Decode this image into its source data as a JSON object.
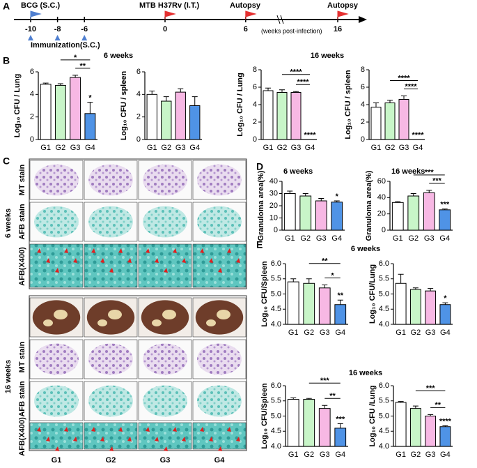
{
  "panel_labels": [
    "A",
    "B",
    "C",
    "D",
    "E"
  ],
  "timeline": {
    "ticks": [
      -10,
      -8,
      -6,
      0,
      6,
      16
    ],
    "bcg": "BCG (S.C.)",
    "immunization": "Immunization(S.C.)",
    "challenge": "MTB H37Rv (I.T.)",
    "autopsy_1": "Autopsy",
    "autopsy_2": "Autopsy",
    "unit": "(weeks post-infection)"
  },
  "headings": {
    "b_6": "6 weeks",
    "b_16": "16 weeks",
    "e_6": "6 weeks",
    "e_16": "16 weeks"
  },
  "histology": {
    "groups": [
      "6 weeks",
      "16 weeks"
    ],
    "rows_6": [
      "MT stain",
      "AFB stain",
      "AFB(X400)"
    ],
    "rows_16": [
      "MT stain",
      "AFB stain",
      "AFB(X400)"
    ],
    "columns": [
      "G1",
      "G2",
      "G3",
      "G4"
    ]
  },
  "chart_data": [
    {
      "type": "bar",
      "ylabel": "Log₁₀ CFU / Lung",
      "categories": [
        "G1",
        "G2",
        "G3",
        "G4"
      ],
      "values": [
        4.9,
        4.8,
        5.5,
        2.3
      ],
      "errors": [
        0.1,
        0.15,
        0.2,
        1.0
      ],
      "colors": [
        "#ffffff",
        "#c8f5c8",
        "#f7b8e4",
        "#4f93e6"
      ],
      "ylim": [
        0,
        6
      ],
      "yticks": [
        0,
        2,
        4,
        6
      ],
      "brackets": [
        {
          "from": "G2",
          "to": "G4",
          "label": "*"
        },
        {
          "from": "G3",
          "to": "G4",
          "label": "**"
        }
      ],
      "annotations": [
        {
          "category": "G4",
          "text": "*"
        }
      ]
    },
    {
      "type": "bar",
      "ylabel": "Log₁₀ CFU / spleen",
      "categories": [
        "G1",
        "G2",
        "G3",
        "G4"
      ],
      "values": [
        4.0,
        3.4,
        4.2,
        3.0
      ],
      "errors": [
        0.3,
        0.4,
        0.3,
        0.8
      ],
      "colors": [
        "#ffffff",
        "#c8f5c8",
        "#f7b8e4",
        "#4f93e6"
      ],
      "ylim": [
        0,
        6
      ],
      "yticks": [
        0,
        2,
        4,
        6
      ],
      "brackets": [],
      "annotations": []
    },
    {
      "type": "bar",
      "ylabel": "Log₁₀ CFU / Lung",
      "categories": [
        "G1",
        "G2",
        "G3",
        "G4"
      ],
      "values": [
        5.6,
        5.4,
        5.4,
        0
      ],
      "errors": [
        0.3,
        0.3,
        0.1,
        0
      ],
      "colors": [
        "#ffffff",
        "#c8f5c8",
        "#f7b8e4",
        "#4f93e6"
      ],
      "ylim": [
        0,
        8
      ],
      "yticks": [
        0,
        2,
        4,
        6,
        8
      ],
      "brackets": [
        {
          "from": "G2",
          "to": "G4",
          "label": "****"
        },
        {
          "from": "G3",
          "to": "G4",
          "label": "****"
        }
      ],
      "annotations": [
        {
          "category": "G4",
          "text": "****"
        }
      ]
    },
    {
      "type": "bar",
      "ylabel": "Log₁₀ CFU / spleen",
      "categories": [
        "G1",
        "G2",
        "G3",
        "G4"
      ],
      "values": [
        3.7,
        4.2,
        4.6,
        0
      ],
      "errors": [
        0.5,
        0.3,
        0.4,
        0
      ],
      "colors": [
        "#ffffff",
        "#c8f5c8",
        "#f7b8e4",
        "#4f93e6"
      ],
      "ylim": [
        0,
        8
      ],
      "yticks": [
        0,
        2,
        4,
        6,
        8
      ],
      "brackets": [
        {
          "from": "G2",
          "to": "G4",
          "label": "****"
        },
        {
          "from": "G3",
          "to": "G4",
          "label": "****"
        }
      ],
      "annotations": [
        {
          "category": "G4",
          "text": "****"
        }
      ]
    },
    {
      "type": "bar",
      "title": "6 weeks",
      "ylabel": "Granuloma area(%)",
      "categories": [
        "G1",
        "G2",
        "G3",
        "G4"
      ],
      "values": [
        30,
        28,
        24,
        23
      ],
      "errors": [
        2,
        2,
        2,
        1
      ],
      "colors": [
        "#ffffff",
        "#c8f5c8",
        "#f7b8e4",
        "#4f93e6"
      ],
      "ylim": [
        0,
        40
      ],
      "yticks": [
        0,
        10,
        20,
        30,
        40
      ],
      "brackets": [],
      "annotations": [
        {
          "category": "G4",
          "text": "*"
        }
      ]
    },
    {
      "type": "bar",
      "title": "16 weeks",
      "ylabel": "Granuloma area(%)",
      "categories": [
        "G1",
        "G2",
        "G3",
        "G4"
      ],
      "values": [
        34,
        42,
        46,
        25
      ],
      "errors": [
        1,
        3,
        3,
        1
      ],
      "colors": [
        "#ffffff",
        "#c8f5c8",
        "#f7b8e4",
        "#4f93e6"
      ],
      "ylim": [
        0,
        60
      ],
      "yticks": [
        0,
        20,
        40,
        60
      ],
      "brackets": [
        {
          "from": "G2",
          "to": "G4",
          "label": "***"
        },
        {
          "from": "G3",
          "to": "G4",
          "label": "***"
        }
      ],
      "annotations": [
        {
          "category": "G4",
          "text": "***"
        }
      ]
    },
    {
      "type": "bar",
      "ylabel": "Log₁₀ CFU/Spleen",
      "categories": [
        "G1",
        "G2",
        "G3",
        "G4"
      ],
      "values": [
        5.4,
        5.35,
        5.2,
        4.65
      ],
      "errors": [
        0.1,
        0.15,
        0.1,
        0.15
      ],
      "colors": [
        "#ffffff",
        "#c8f5c8",
        "#f7b8e4",
        "#4f93e6"
      ],
      "ylim": [
        4.0,
        6.0
      ],
      "yticks": [
        {
          "value": 4.0,
          "label": "4.0"
        },
        4.5,
        {
          "value": 5.0,
          "label": "5.0"
        },
        5.5,
        {
          "value": 6.0,
          "label": "6.0"
        }
      ],
      "brackets": [
        {
          "from": "G2",
          "to": "G4",
          "label": "**"
        },
        {
          "from": "G3",
          "to": "G4",
          "label": "*"
        }
      ],
      "annotations": [
        {
          "category": "G4",
          "text": "**"
        }
      ]
    },
    {
      "type": "bar",
      "ylabel": "Log₁₀ CFU/Lung",
      "categories": [
        "G1",
        "G2",
        "G3",
        "G4"
      ],
      "values": [
        5.35,
        5.15,
        5.1,
        4.65
      ],
      "errors": [
        0.3,
        0.05,
        0.08,
        0.06
      ],
      "colors": [
        "#ffffff",
        "#c8f5c8",
        "#f7b8e4",
        "#4f93e6"
      ],
      "ylim": [
        4.0,
        6.0
      ],
      "yticks": [
        {
          "value": 4.0,
          "label": "4.0"
        },
        4.5,
        {
          "value": 5.0,
          "label": "5.0"
        },
        5.5,
        {
          "value": 6.0,
          "label": "6.0"
        }
      ],
      "brackets": [],
      "annotations": [
        {
          "category": "G4",
          "text": "*"
        }
      ]
    },
    {
      "type": "bar",
      "ylabel": "Log₁₀ CFU/Spleen",
      "categories": [
        "G1",
        "G2",
        "G3",
        "G4"
      ],
      "values": [
        5.55,
        5.55,
        5.25,
        4.6
      ],
      "errors": [
        0.05,
        0.03,
        0.1,
        0.15
      ],
      "colors": [
        "#ffffff",
        "#c8f5c8",
        "#f7b8e4",
        "#4f93e6"
      ],
      "ylim": [
        4.0,
        6.0
      ],
      "yticks": [
        {
          "value": 4.0,
          "label": "4.0"
        },
        4.5,
        {
          "value": 5.0,
          "label": "5.0"
        },
        5.5,
        {
          "value": 6.0,
          "label": "6.0"
        }
      ],
      "brackets": [
        {
          "from": "G2",
          "to": "G4",
          "label": "***"
        },
        {
          "from": "G3",
          "to": "G4",
          "label": "**"
        }
      ],
      "annotations": [
        {
          "category": "G4",
          "text": "***"
        }
      ]
    },
    {
      "type": "bar",
      "ylabel": "Log₁₀ CFU /Lung",
      "categories": [
        "G1",
        "G2",
        "G3",
        "G4"
      ],
      "values": [
        5.45,
        5.25,
        5.0,
        4.65
      ],
      "errors": [
        0.03,
        0.08,
        0.05,
        0.03
      ],
      "colors": [
        "#ffffff",
        "#c8f5c8",
        "#f7b8e4",
        "#4f93e6"
      ],
      "ylim": [
        4.0,
        6.0
      ],
      "yticks": [
        {
          "value": 4.0,
          "label": "4.0"
        },
        4.5,
        {
          "value": 5.0,
          "label": "5.0"
        },
        5.5,
        {
          "value": 6.0,
          "label": "6.0"
        }
      ],
      "brackets": [
        {
          "from": "G2",
          "to": "G4",
          "label": "***"
        },
        {
          "from": "G3",
          "to": "G4",
          "label": "**"
        }
      ],
      "annotations": [
        {
          "category": "G4",
          "text": "****"
        }
      ]
    }
  ]
}
